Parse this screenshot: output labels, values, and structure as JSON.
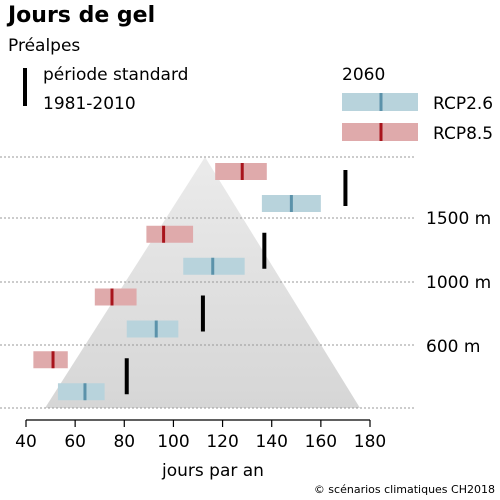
{
  "chart_data": {
    "type": "range-bar",
    "title": "Jours de gel",
    "subtitle": "Préalpes",
    "xlabel": "jours par an",
    "xlim": [
      40,
      180
    ],
    "xticks": [
      40,
      60,
      80,
      100,
      120,
      140,
      160,
      180
    ],
    "legend": {
      "standard_line1": "période standard",
      "standard_line2": "1981-2010",
      "scenario_title": "2060",
      "rcp26_label": "RCP2.6",
      "rcp85_label": "RCP8.5"
    },
    "altitude_labels": [
      "1500 m",
      "1000 m",
      "600 m"
    ],
    "levels": [
      {
        "standard": 170,
        "rcp26": {
          "low": 136,
          "median": 148,
          "high": 160
        },
        "rcp85": {
          "low": 117,
          "median": 128,
          "high": 138
        }
      },
      {
        "standard": 137,
        "rcp26": {
          "low": 104,
          "median": 116,
          "high": 129
        },
        "rcp85": {
          "low": 89,
          "median": 96,
          "high": 108
        }
      },
      {
        "standard": 112,
        "rcp26": {
          "low": 81,
          "median": 93,
          "high": 102
        },
        "rcp85": {
          "low": 68,
          "median": 75,
          "high": 85
        }
      },
      {
        "standard": 81,
        "rcp26": {
          "low": 53,
          "median": 64,
          "high": 72
        },
        "rcp85": {
          "low": 43,
          "median": 51,
          "high": 57
        }
      }
    ],
    "colors": {
      "rcp26_fill": "#b8d3dc",
      "rcp26_median": "#5b92aa",
      "rcp85_fill": "#dfaaab",
      "rcp85_median": "#a8141c",
      "standard": "#000000",
      "mountain_top": "#ebebeb",
      "mountain_bottom": "#d6d6d6",
      "gridline": "#999999"
    }
  },
  "credit": "© scénarios climatiques CH2018"
}
